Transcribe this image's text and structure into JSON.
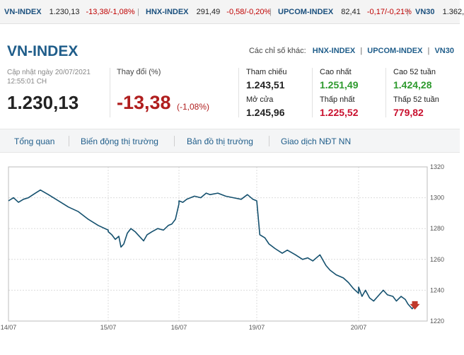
{
  "ticker": [
    {
      "name": "VN-INDEX",
      "value": "1.230,13",
      "change": "-13,38/-1,08%"
    },
    {
      "name": "HNX-INDEX",
      "value": "291,49",
      "change": "-0,58/-0,20%"
    },
    {
      "name": "UPCOM-INDEX",
      "value": "82,41",
      "change": "-0,17/-0,21%"
    },
    {
      "name": "VN30",
      "value": "1.362,",
      "change": ""
    }
  ],
  "header": {
    "title": "VN-INDEX",
    "other_label": "Các chỉ số khác:",
    "other_links": [
      "HNX-INDEX",
      "UPCOM-INDEX",
      "VN30"
    ]
  },
  "summary": {
    "updated_line1": "Cập nhật ngày 20/07/2021",
    "updated_line2": "12:55:01 CH",
    "price": "1.230,13",
    "change_label": "Thay đổi (%)",
    "change_value": "-13,38",
    "change_pct": "(-1,08%)"
  },
  "stats": {
    "ref_label": "Tham chiếu",
    "ref_value": "1.243,51",
    "open_label": "Mở cửa",
    "open_value": "1.245,96",
    "high_label": "Cao nhất",
    "high_value": "1.251,49",
    "low_label": "Thấp nhất",
    "low_value": "1.225,52",
    "high52_label": "Cao 52 tuần",
    "high52_value": "1.424,28",
    "low52_label": "Thấp 52 tuần",
    "low52_value": "779,82"
  },
  "tabs": [
    "Tổng quan",
    "Biến động thị trường",
    "Bản đồ thị trường",
    "Giao dịch NĐT NN"
  ],
  "colors": {
    "brand": "#1f5d8a",
    "up": "#2e9a2e",
    "down": "#c9102e",
    "line": "#14506e"
  },
  "chart_data": {
    "type": "line",
    "x_tick_labels": [
      "14/07",
      "15/07",
      "16/07",
      "19/07",
      "20/07"
    ],
    "y_ticks": [
      1220,
      1240,
      1260,
      1280,
      1300,
      1320
    ],
    "ylim": [
      1220,
      1320
    ],
    "grid": true,
    "last_point_marker": "down-arrow",
    "series": [
      {
        "x_session": [
          0,
          0.05,
          0.1,
          0.15,
          0.2,
          0.27,
          0.32,
          0.4,
          0.45,
          0.55,
          0.6,
          0.7,
          0.8,
          0.9,
          1.0,
          1.0,
          1.05,
          1.1,
          1.15,
          1.18,
          1.22,
          1.27,
          1.32,
          1.38,
          1.42,
          1.5,
          1.55,
          1.62,
          1.7,
          1.78,
          1.85,
          1.9,
          1.95,
          2.0,
          2.0,
          2.05,
          2.1,
          2.2,
          2.28,
          2.35,
          2.4,
          2.5,
          2.55,
          2.6,
          2.7,
          2.8,
          2.88,
          2.95,
          3.0,
          3.0,
          3.03,
          3.08,
          3.12,
          3.18,
          3.25,
          3.3,
          3.38,
          3.45,
          3.5,
          3.55,
          3.62,
          3.68,
          3.72,
          3.78,
          3.85,
          3.9,
          3.95,
          4.0,
          4.0,
          4.05,
          4.1,
          4.16,
          4.22,
          4.3,
          4.36,
          4.42,
          4.5,
          4.55,
          4.62,
          4.68,
          4.72,
          4.78,
          4.82
        ],
        "y": [
          1298,
          1300,
          1297,
          1299,
          1300,
          1303,
          1305,
          1302,
          1300,
          1296,
          1294,
          1291,
          1286,
          1282,
          1279,
          1278,
          1276,
          1273,
          1275,
          1268,
          1270,
          1277,
          1280,
          1278,
          1276,
          1272,
          1276,
          1278,
          1280,
          1279,
          1282,
          1283,
          1286,
          1296,
          1298,
          1297,
          1299,
          1301,
          1300,
          1303,
          1302,
          1303,
          1302,
          1301,
          1300,
          1299,
          1302,
          1299,
          1298,
          1298,
          1276,
          1274,
          1270,
          1267,
          1264,
          1266,
          1263,
          1260,
          1261,
          1259,
          1263,
          1256,
          1253,
          1250,
          1248,
          1245,
          1241,
          1238,
          1242,
          1236,
          1240,
          1235,
          1233,
          1237,
          1240,
          1237,
          1236,
          1233,
          1236,
          1234,
          1231,
          1228,
          1230.13
        ]
      }
    ]
  }
}
